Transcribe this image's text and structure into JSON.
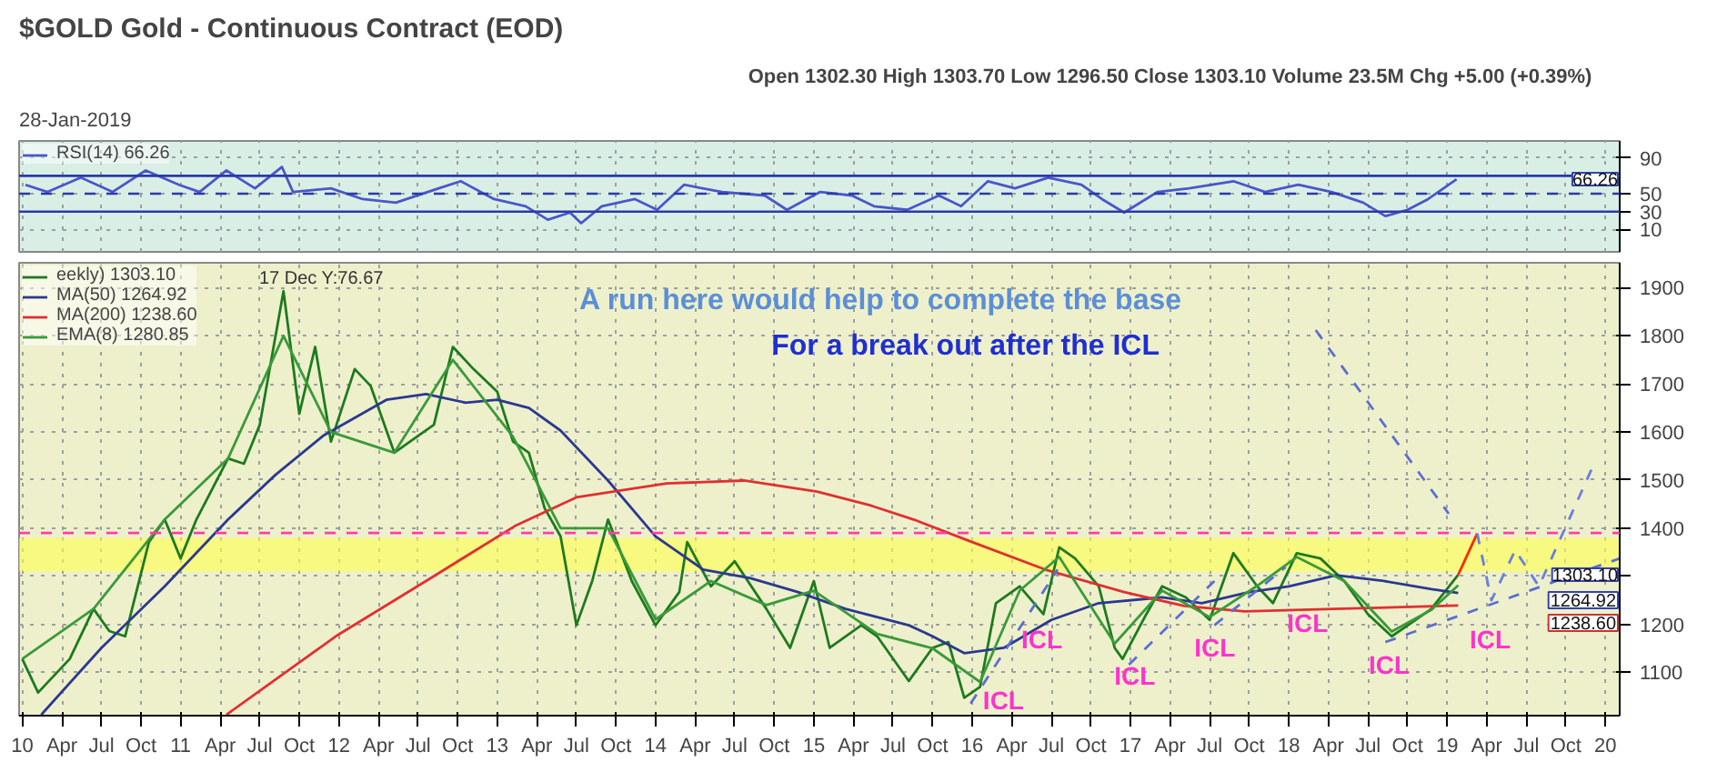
{
  "chart_data": [
    {
      "type": "line",
      "title": "$GOLD Gold - Continuous Contract (EOD)",
      "subtitle": "28-Jan-2019",
      "annotations": [
        "Open 1302.30  High 1303.70  Low 1296.50  Close 1303.10  Volume 23.5M  Chg +5.00 (+0.39%)",
        {
          "text": "66.26",
          "y": 66.26
        }
      ],
      "series": [
        {
          "name": "RSI(14) 66.26",
          "color": "#4a57c8",
          "x": [
            2010.02,
            2010.16,
            2010.37,
            2010.57,
            2010.78,
            2010.99,
            2011.12,
            2011.29,
            2011.47,
            2011.64,
            2011.71,
            2011.95,
            2012.15,
            2012.36,
            2012.63,
            2012.77,
            2012.98,
            2013.18,
            2013.32,
            2013.46,
            2013.53,
            2013.66,
            2013.87,
            2014.01,
            2014.18,
            2014.42,
            2014.69,
            2014.83,
            2015.04,
            2015.24,
            2015.38,
            2015.59,
            2015.79,
            2015.93,
            2016.1,
            2016.27,
            2016.48,
            2016.69,
            2016.82,
            2016.96,
            2017.17,
            2017.37,
            2017.65,
            2017.85,
            2018.06,
            2018.27,
            2018.47,
            2018.61,
            2018.75,
            2018.88,
            2019.06
          ],
          "values": [
            60,
            52,
            68,
            52,
            76,
            60,
            52,
            76,
            56,
            80,
            52,
            56,
            44,
            40,
            56,
            64,
            44,
            36,
            21,
            29,
            17,
            36,
            44,
            32,
            60,
            52,
            48,
            32,
            52,
            48,
            36,
            32,
            48,
            36,
            64,
            56,
            68,
            60,
            44,
            29,
            52,
            56,
            64,
            52,
            60,
            52,
            40,
            25,
            32,
            44,
            66.26
          ]
        }
      ],
      "ref_lines": [
        {
          "axis": "y",
          "value": 70,
          "color": "#2b3aa8",
          "line_style": "solid"
        },
        {
          "axis": "y",
          "value": 50,
          "color": "#2b3aa8",
          "line_style": "dashed"
        },
        {
          "axis": "y",
          "value": 30,
          "color": "#2b3aa8",
          "line_style": "solid"
        }
      ],
      "xlim": [
        2009.98,
        2020.09
      ],
      "ylim": [
        -15,
        109
      ],
      "yticks": [
        10,
        30,
        50,
        90
      ],
      "xticks": [
        2010,
        2010.25,
        2010.5,
        2010.75,
        2011,
        2011.25,
        2011.5,
        2011.75,
        2012,
        2012.25,
        2012.5,
        2012.75,
        2013,
        2013.25,
        2013.5,
        2013.75,
        2014,
        2014.25,
        2014.5,
        2014.75,
        2015,
        2015.25,
        2015.5,
        2015.75,
        2016,
        2016.25,
        2016.5,
        2016.75,
        2017,
        2017.25,
        2017.5,
        2017.75,
        2018,
        2018.25,
        2018.5,
        2018.75,
        2019,
        2019.25,
        2019.5,
        2019.75,
        2020
      ],
      "tick_labels": "y",
      "grid": true,
      "legend": "top left"
    },
    {
      "type": "line",
      "annotations": [
        "17 Dec Y:76.67",
        "A run here would help to complete  the base",
        "For a break out after the ICL",
        "ICL",
        "ICL",
        "ICL",
        "ICL",
        "ICL",
        "ICL",
        "ICL",
        {
          "text": "1303.10",
          "y": 1303.1
        },
        "1264.92",
        "1238.60"
      ],
      "series": [
        {
          "name": "eekly) 1303.10",
          "color": "#1e7a1e",
          "x": [
            2010.0,
            2010.1,
            2010.3,
            2010.45,
            2010.55,
            2010.65,
            2010.8,
            2010.9,
            2011.0,
            2011.1,
            2011.3,
            2011.4,
            2011.5,
            2011.65,
            2011.75,
            2011.85,
            2011.95,
            2012.1,
            2012.2,
            2012.35,
            2012.5,
            2012.6,
            2012.72,
            2012.85,
            2013.0,
            2013.1,
            2013.2,
            2013.3,
            2013.4,
            2013.5,
            2013.6,
            2013.7,
            2013.85,
            2014.0,
            2014.15,
            2014.2,
            2014.35,
            2014.5,
            2014.7,
            2014.85,
            2015.0,
            2015.1,
            2015.3,
            2015.4,
            2015.6,
            2015.75,
            2015.85,
            2015.95,
            2016.05,
            2016.15,
            2016.3,
            2016.45,
            2016.55,
            2016.65,
            2016.8,
            2016.9,
            2016.95,
            2017.1,
            2017.2,
            2017.35,
            2017.5,
            2017.65,
            2017.8,
            2017.9,
            2018.05,
            2018.2,
            2018.35,
            2018.5,
            2018.65,
            2018.8,
            2018.9,
            2019.07
          ],
          "values": [
            1128,
            1058,
            1128,
            1232,
            1186,
            1175,
            1371,
            1418,
            1337,
            1418,
            1545,
            1534,
            1615,
            1893,
            1638,
            1777,
            1580,
            1731,
            1696,
            1557,
            1592,
            1615,
            1777,
            1731,
            1684,
            1580,
            1557,
            1441,
            1383,
            1198,
            1290,
            1418,
            1290,
            1198,
            1267,
            1371,
            1279,
            1331,
            1232,
            1151,
            1290,
            1151,
            1198,
            1175,
            1082,
            1151,
            1163,
            1047,
            1070,
            1244,
            1279,
            1221,
            1360,
            1337,
            1279,
            1151,
            1128,
            1221,
            1279,
            1256,
            1209,
            1348,
            1279,
            1244,
            1348,
            1337,
            1290,
            1221,
            1175,
            1209,
            1232,
            1303
          ]
        },
        {
          "name": "MA(50) 1264.92",
          "color": "#2b3990",
          "x": [
            2010.12,
            2010.5,
            2010.9,
            2011.3,
            2011.6,
            2011.9,
            2012.3,
            2012.55,
            2012.8,
            2013.0,
            2013.2,
            2013.4,
            2013.7,
            2014.0,
            2014.3,
            2014.6,
            2014.9,
            2015.2,
            2015.6,
            2015.75,
            2015.95,
            2016.2,
            2016.5,
            2016.8,
            2017.2,
            2017.45,
            2017.75,
            2018.0,
            2018.3,
            2018.6,
            2018.9,
            2019.07
          ],
          "values": [
            1012,
            1151,
            1279,
            1418,
            1511,
            1592,
            1667,
            1679,
            1661,
            1667,
            1650,
            1603,
            1499,
            1383,
            1314,
            1296,
            1267,
            1232,
            1198,
            1175,
            1140,
            1151,
            1209,
            1244,
            1256,
            1244,
            1267,
            1279,
            1302,
            1290,
            1273,
            1265
          ]
        },
        {
          "name": "MA(200) 1238.60",
          "color": "#e03030",
          "x": [
            2011.29,
            2011.98,
            2012.55,
            2013.12,
            2013.5,
            2014.07,
            2014.56,
            2015.02,
            2015.36,
            2015.63,
            2016.0,
            2016.46,
            2016.96,
            2017.34,
            2017.72,
            2018.29,
            2019.07
          ],
          "values": [
            1012,
            1175,
            1290,
            1406,
            1464,
            1493,
            1499,
            1476,
            1447,
            1418,
            1371,
            1314,
            1267,
            1238,
            1227,
            1232,
            1239
          ]
        },
        {
          "name": "EMA(8) 1280.85",
          "color": "#3a9a3a",
          "x": [
            2010.0,
            2010.45,
            2010.9,
            2011.3,
            2011.65,
            2011.95,
            2012.35,
            2012.72,
            2013.1,
            2013.4,
            2013.7,
            2014.0,
            2014.35,
            2014.7,
            2015.0,
            2015.4,
            2015.75,
            2016.05,
            2016.3,
            2016.55,
            2016.9,
            2017.2,
            2017.5,
            2017.8,
            2018.05,
            2018.35,
            2018.65,
            2018.9,
            2019.07
          ],
          "values": [
            1128,
            1232,
            1418,
            1545,
            1800,
            1600,
            1557,
            1750,
            1590,
            1400,
            1400,
            1210,
            1290,
            1240,
            1270,
            1180,
            1150,
            1080,
            1270,
            1340,
            1160,
            1270,
            1215,
            1280,
            1340,
            1290,
            1185,
            1230,
            1281
          ]
        },
        {
          "color": "#ff2a00",
          "x": [
            2019.07,
            2019.19
          ],
          "values": [
            1303,
            1389
          ]
        },
        {
          "color": "#6a7fe0",
          "line_style": "dashed",
          "x": [
            2019.19,
            2019.28,
            2019.43,
            2019.58,
            2019.92
          ],
          "values": [
            1389,
            1250,
            1354,
            1279,
            1528
          ]
        },
        {
          "color": "#5a6fd0",
          "line_style": "dashed",
          "x": [
            2018.17,
            2019.01
          ],
          "values": [
            1812,
            1430
          ]
        },
        {
          "color": "#5a6fd0",
          "line_style": "dashed",
          "x": [
            2018.61,
            2020.09
          ],
          "values": [
            1163,
            1337
          ]
        },
        {
          "color": "#5a6fd0",
          "line_style": "dashed",
          "x": [
            2015.99,
            2016.54
          ],
          "values": [
            1035,
            1314
          ]
        },
        {
          "color": "#5a6fd0",
          "line_style": "dashed",
          "x": [
            2016.99,
            2017.53
          ],
          "values": [
            1116,
            1290
          ]
        },
        {
          "color": "#5a6fd0",
          "line_style": "dashed",
          "x": [
            2017.53,
            2017.98
          ],
          "values": [
            1198,
            1319
          ]
        }
      ],
      "ref_lines": [
        {
          "axis": "y",
          "value": 1390,
          "color": "#ff3ea5",
          "line_style": "dashed"
        }
      ],
      "bands": [
        {
          "axis": "y",
          "from": 1310,
          "to": 1380,
          "color": "#ffff4d"
        }
      ],
      "xlim": [
        2009.98,
        2020.09
      ],
      "ylim": [
        1010,
        1952
      ],
      "yticks": [
        1100,
        1200,
        {
          "value": 1300,
          "label": null
        },
        1400,
        1500,
        1600,
        1700,
        1800,
        1900
      ],
      "xticks": [
        {
          "value": 2010,
          "label": "10"
        },
        {
          "value": 2010.25,
          "label": "Apr"
        },
        {
          "value": 2010.5,
          "label": "Jul"
        },
        {
          "value": 2010.75,
          "label": "Oct"
        },
        {
          "value": 2011,
          "label": "11"
        },
        {
          "value": 2011.25,
          "label": "Apr"
        },
        {
          "value": 2011.5,
          "label": "Jul"
        },
        {
          "value": 2011.75,
          "label": "Oct"
        },
        {
          "value": 2012,
          "label": "12"
        },
        {
          "value": 2012.25,
          "label": "Apr"
        },
        {
          "value": 2012.5,
          "label": "Jul"
        },
        {
          "value": 2012.75,
          "label": "Oct"
        },
        {
          "value": 2013,
          "label": "13"
        },
        {
          "value": 2013.25,
          "label": "Apr"
        },
        {
          "value": 2013.5,
          "label": "Jul"
        },
        {
          "value": 2013.75,
          "label": "Oct"
        },
        {
          "value": 2014,
          "label": "14"
        },
        {
          "value": 2014.25,
          "label": "Apr"
        },
        {
          "value": 2014.5,
          "label": "Jul"
        },
        {
          "value": 2014.75,
          "label": "Oct"
        },
        {
          "value": 2015,
          "label": "15"
        },
        {
          "value": 2015.25,
          "label": "Apr"
        },
        {
          "value": 2015.5,
          "label": "Jul"
        },
        {
          "value": 2015.75,
          "label": "Oct"
        },
        {
          "value": 2016,
          "label": "16"
        },
        {
          "value": 2016.25,
          "label": "Apr"
        },
        {
          "value": 2016.5,
          "label": "Jul"
        },
        {
          "value": 2016.75,
          "label": "Oct"
        },
        {
          "value": 2017,
          "label": "17"
        },
        {
          "value": 2017.25,
          "label": "Apr"
        },
        {
          "value": 2017.5,
          "label": "Jul"
        },
        {
          "value": 2017.75,
          "label": "Oct"
        },
        {
          "value": 2018,
          "label": "18"
        },
        {
          "value": 2018.25,
          "label": "Apr"
        },
        {
          "value": 2018.5,
          "label": "Jul"
        },
        {
          "value": 2018.75,
          "label": "Oct"
        },
        {
          "value": 2019,
          "label": "19"
        },
        {
          "value": 2019.25,
          "label": "Apr"
        },
        {
          "value": 2019.5,
          "label": "Jul"
        },
        {
          "value": 2019.75,
          "label": "Oct"
        },
        {
          "value": 2020,
          "label": "20"
        }
      ],
      "grid": true,
      "legend": "top left"
    }
  ]
}
